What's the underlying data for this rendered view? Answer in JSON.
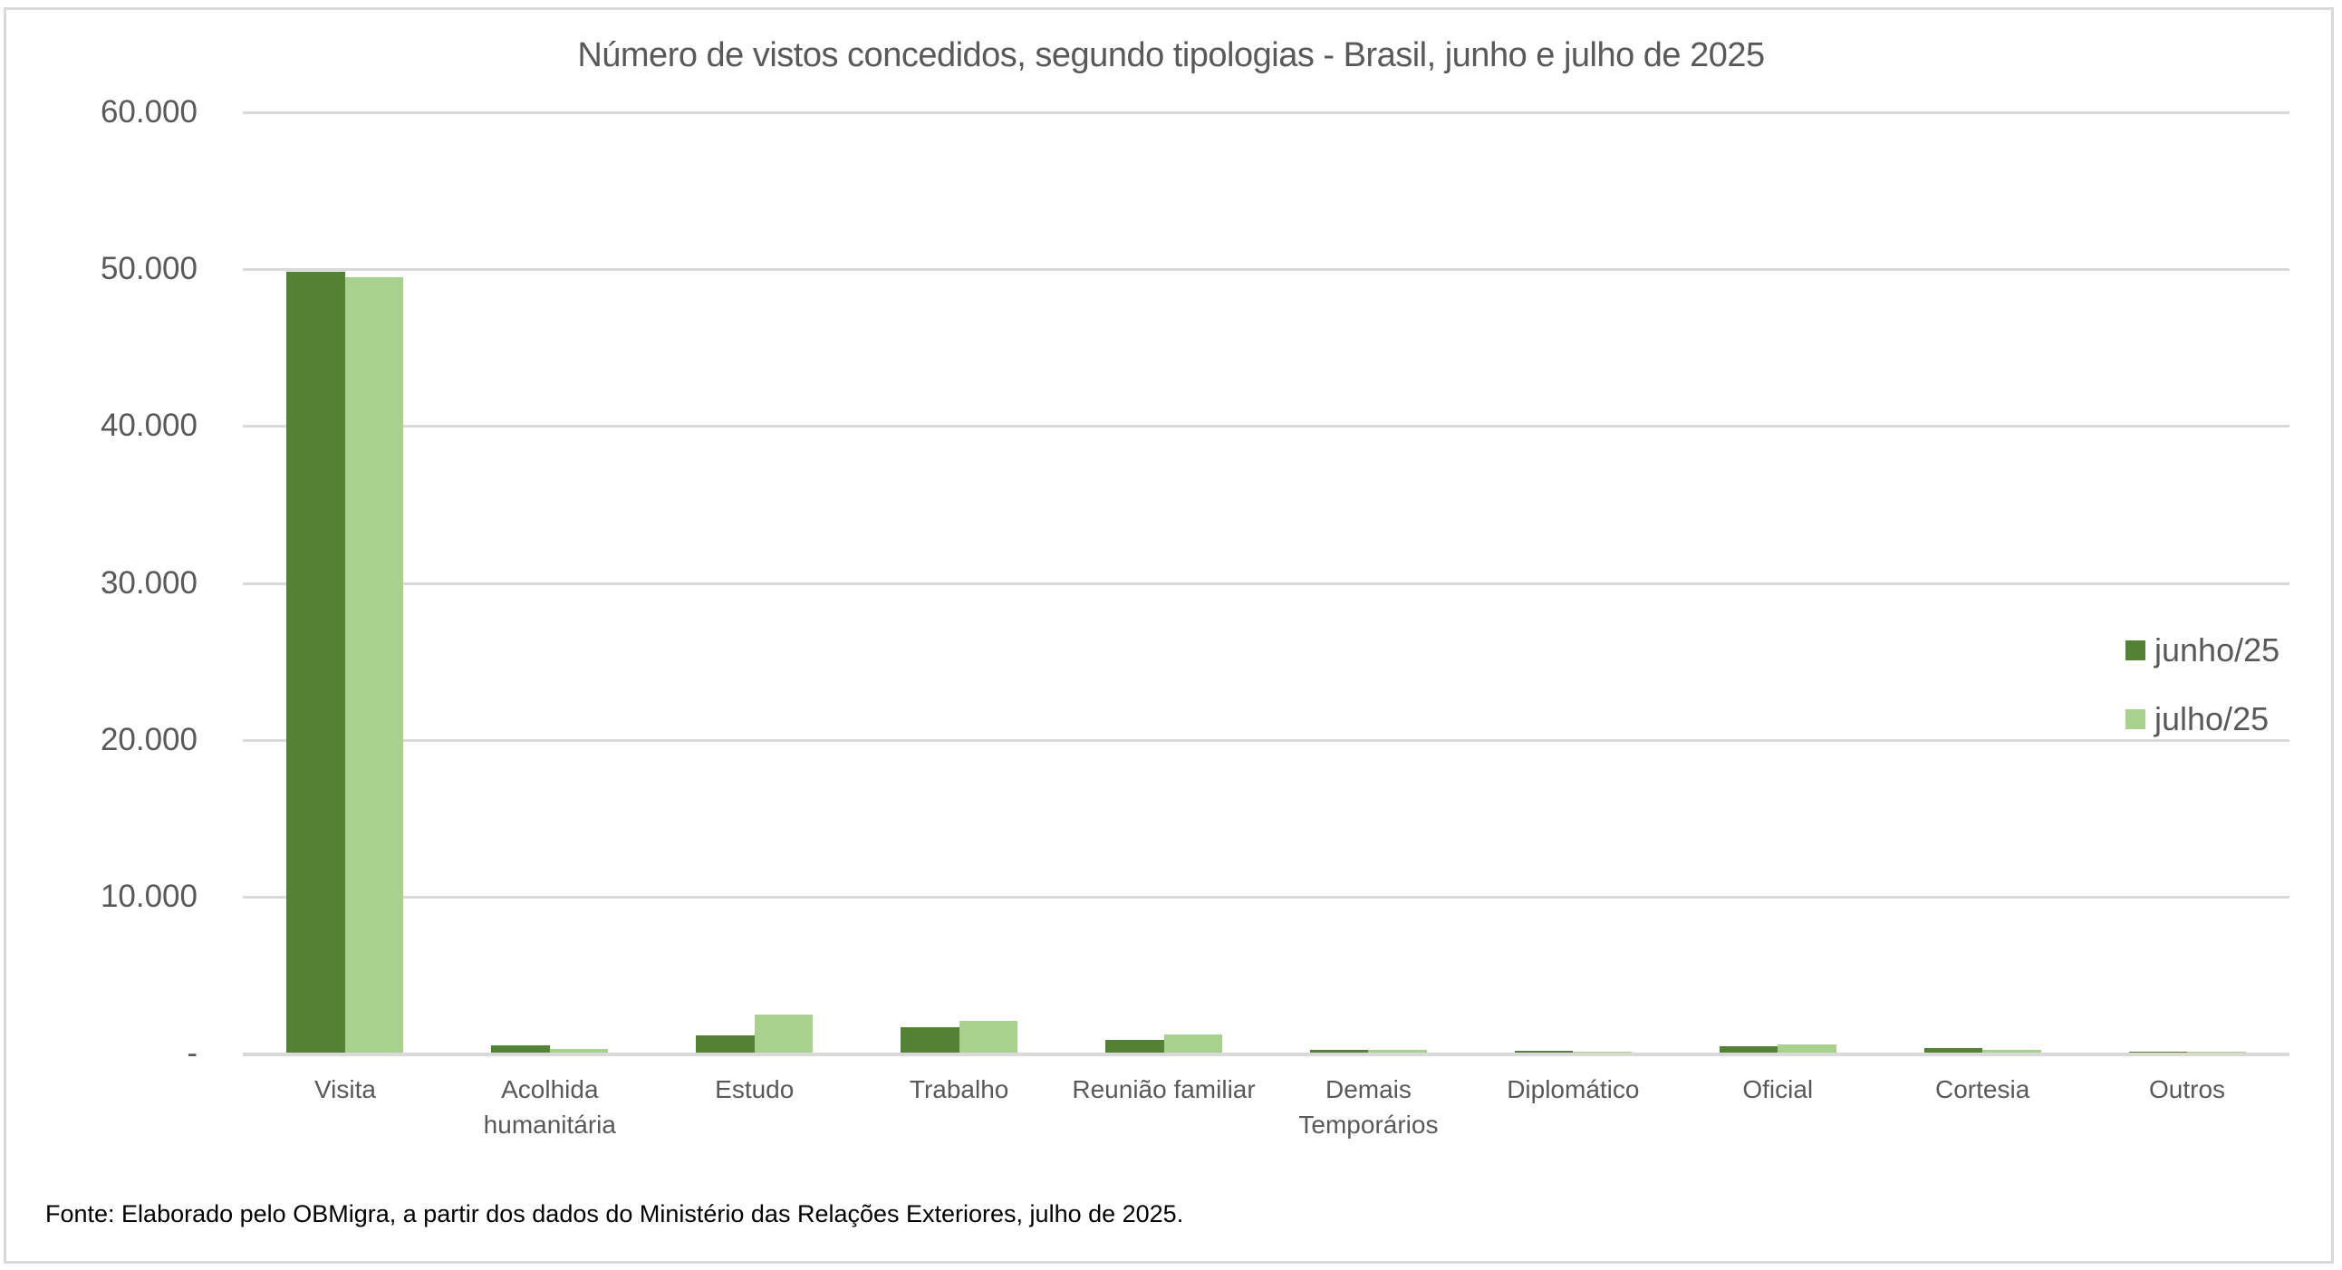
{
  "chart_data": {
    "type": "bar",
    "title": "Número de vistos concedidos, segundo tipologias - Brasil, junho e julho de 2025",
    "xlabel": "",
    "ylabel": "",
    "ylim": [
      0,
      60000
    ],
    "yticks": [
      0,
      10000,
      20000,
      30000,
      40000,
      50000,
      60000
    ],
    "ytick_labels": [
      "-",
      "10.000",
      "20.000",
      "30.000",
      "40.000",
      "50.000",
      "60.000"
    ],
    "grid": true,
    "legend_position": "right",
    "categories": [
      "Visita",
      "Acolhida humanitária",
      "Estudo",
      "Trabalho",
      "Reunião familiar",
      "Demais Temporários",
      "Diplomático",
      "Oficial",
      "Cortesia",
      "Outros"
    ],
    "category_lines": [
      [
        "Visita"
      ],
      [
        "Acolhida",
        "humanitária"
      ],
      [
        "Estudo"
      ],
      [
        "Trabalho"
      ],
      [
        "Reunião familiar"
      ],
      [
        "Demais",
        "Temporários"
      ],
      [
        "Diplomático"
      ],
      [
        "Oficial"
      ],
      [
        "Cortesia"
      ],
      [
        "Outros"
      ]
    ],
    "series": [
      {
        "name": "junho/25",
        "color": "#548235",
        "values": [
          49770,
          480,
          1080,
          1590,
          830,
          200,
          100,
          400,
          270,
          50
        ]
      },
      {
        "name": "julho/25",
        "color": "#a9d18e",
        "values": [
          49420,
          230,
          2450,
          2050,
          1180,
          175,
          75,
          520,
          155,
          30
        ]
      }
    ]
  },
  "footer": {
    "source": "Fonte: Elaborado pelo OBMigra, a partir dos dados do Ministério das Relações Exteriores, julho de 2025."
  }
}
